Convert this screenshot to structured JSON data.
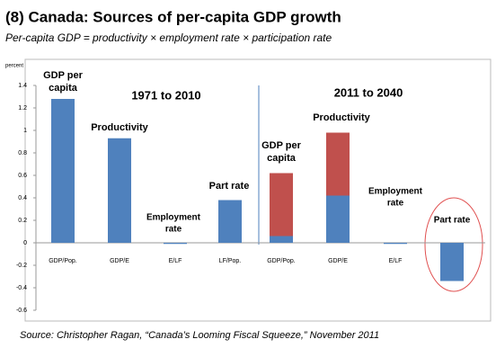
{
  "chart_data": {
    "type": "bar",
    "stacked": true,
    "title": "(8) Canada: Sources of per-capita GDP growth",
    "subtitle": "Per-capita GDP = productivity × employment rate × participation rate",
    "y_label": "percent",
    "source": "Source: Christopher Ragan, “Canada’s Looming Fiscal Squeeze,” November 2011",
    "categories": [
      "GDP/Pop.",
      "GDP/E",
      "E/LF",
      "LF/Pop.",
      "GDP/Pop.",
      "GDP/E",
      "E/LF",
      "LF/Pop."
    ],
    "series": [
      {
        "color": "#4f81bd",
        "values": [
          1.28,
          0.93,
          -0.01,
          0.38,
          0.06,
          0.42,
          -0.01,
          -0.34
        ]
      },
      {
        "color": "#c0504d",
        "values": [
          null,
          null,
          null,
          null,
          0.56,
          0.56,
          null,
          null
        ]
      }
    ],
    "ylim": [
      -0.6,
      1.4
    ],
    "yticks": [
      -0.6,
      -0.4,
      -0.2,
      0,
      0.2,
      0.4,
      0.6,
      0.8,
      1,
      1.2,
      1.4
    ],
    "annotations": [
      [
        "1971 to 2010"
      ],
      [
        "2011 to 2040"
      ],
      [
        "GDP per",
        "capita"
      ],
      [
        "Productivity"
      ],
      [
        "Employment",
        "rate"
      ],
      [
        "Part rate"
      ],
      [
        "GDP per",
        "capita"
      ],
      [
        "Productivity"
      ],
      [
        "Employment",
        "rate"
      ],
      [
        "Part rate"
      ]
    ]
  }
}
